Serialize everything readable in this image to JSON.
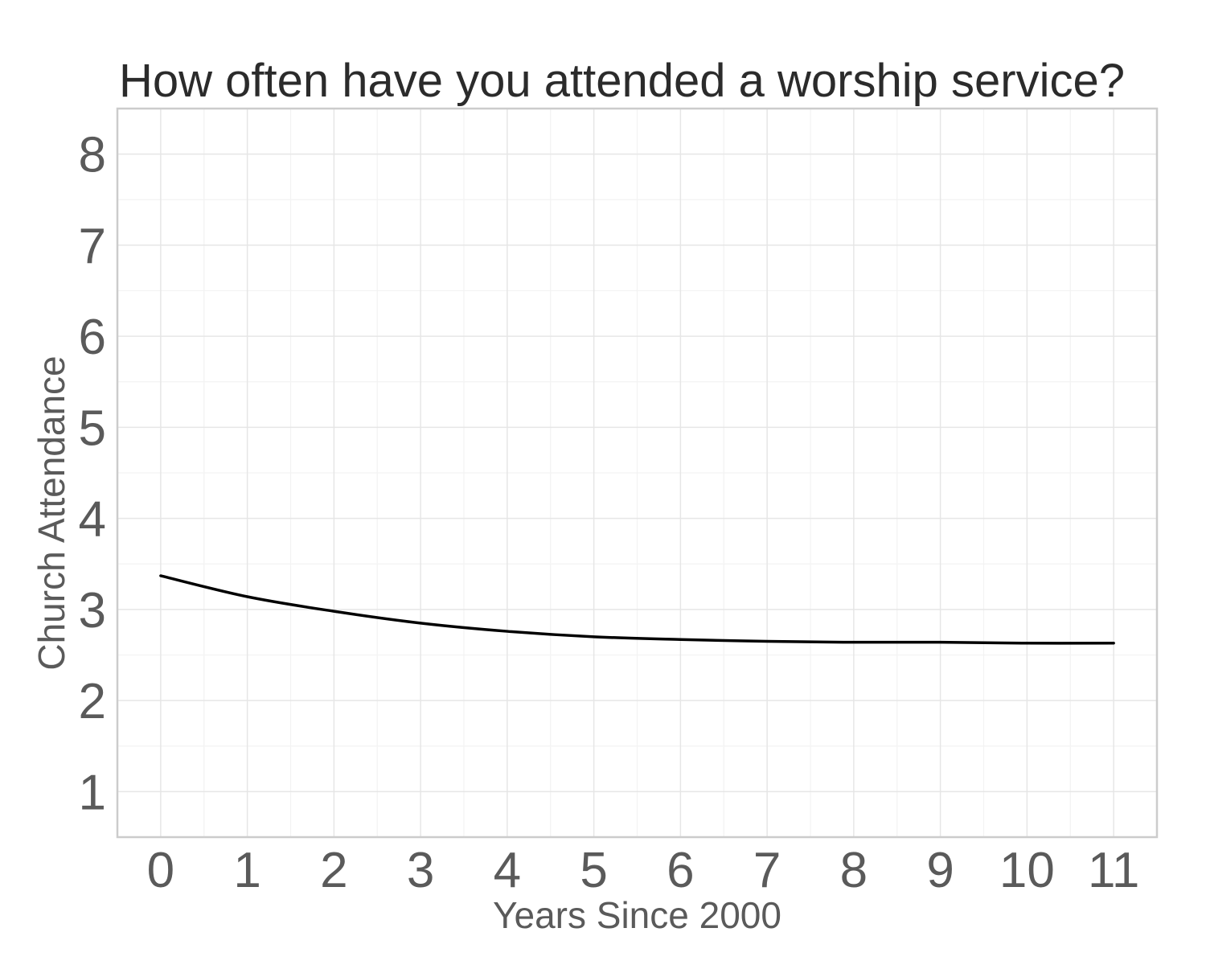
{
  "chart_data": {
    "type": "line",
    "title": "How often have you attended a worship service?",
    "xlabel": "Years Since 2000",
    "ylabel": "Church Attendance",
    "xlim": [
      -0.5,
      11.5
    ],
    "ylim": [
      0.5,
      8.5
    ],
    "x_ticks": [
      0,
      1,
      2,
      3,
      4,
      5,
      6,
      7,
      8,
      9,
      10,
      11
    ],
    "y_ticks": [
      1,
      2,
      3,
      4,
      5,
      6,
      7,
      8
    ],
    "grid": true,
    "legend": "none",
    "series": [
      {
        "color": "#000000",
        "x": [
          0,
          1,
          2,
          3,
          4,
          5,
          6,
          7,
          8,
          9,
          10,
          11
        ],
        "y": [
          3.37,
          3.14,
          2.98,
          2.85,
          2.76,
          2.7,
          2.67,
          2.65,
          2.64,
          2.64,
          2.63,
          2.63
        ]
      }
    ]
  }
}
